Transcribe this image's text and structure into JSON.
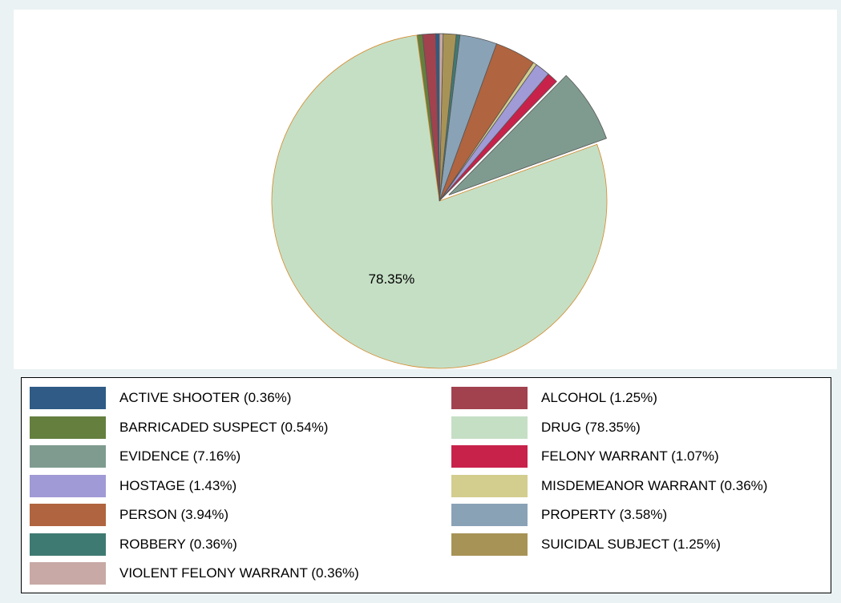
{
  "chart_data": {
    "type": "pie",
    "slices": [
      {
        "name": "ACTIVE SHOOTER",
        "percent": 0.36,
        "color": "#2f5b86",
        "legend_label": "ACTIVE SHOOTER (0.36%)"
      },
      {
        "name": "ALCOHOL",
        "percent": 1.25,
        "color": "#a2424f",
        "legend_label": "ALCOHOL (1.25%)"
      },
      {
        "name": "BARRICADED SUSPECT",
        "percent": 0.54,
        "color": "#657f3f",
        "legend_label": "BARRICADED SUSPECT (0.54%)"
      },
      {
        "name": "DRUG",
        "percent": 78.35,
        "color": "#c5dfc5",
        "legend_label": "DRUG (78.35%)",
        "data_label": "78.35%"
      },
      {
        "name": "EVIDENCE",
        "percent": 7.16,
        "color": "#7f9b8f",
        "legend_label": "EVIDENCE (7.16%)",
        "exploded": true
      },
      {
        "name": "FELONY WARRANT",
        "percent": 1.07,
        "color": "#c8224a",
        "legend_label": "FELONY WARRANT (1.07%)"
      },
      {
        "name": "HOSTAGE",
        "percent": 1.43,
        "color": "#a09ad6",
        "legend_label": "HOSTAGE (1.43%)"
      },
      {
        "name": "MISDEMEANOR WARRANT",
        "percent": 0.36,
        "color": "#d3cd8e",
        "legend_label": "MISDEMEANOR WARRANT (0.36%)"
      },
      {
        "name": "PERSON",
        "percent": 3.94,
        "color": "#b0643f",
        "legend_label": "PERSON (3.94%)"
      },
      {
        "name": "PROPERTY",
        "percent": 3.58,
        "color": "#8aa2b6",
        "legend_label": "PROPERTY (3.58%)"
      },
      {
        "name": "ROBBERY",
        "percent": 0.36,
        "color": "#3f7a72",
        "legend_label": "ROBBERY (0.36%)"
      },
      {
        "name": "SUICIDAL SUBJECT",
        "percent": 1.25,
        "color": "#a89356",
        "legend_label": "SUICIDAL SUBJECT (1.25%)"
      },
      {
        "name": "VIOLENT FELONY WARRANT",
        "percent": 0.36,
        "color": "#c8a9a5",
        "legend_label": "VIOLENT FELONY WARRANT (0.36%)"
      }
    ],
    "legend": {
      "placement": "bottom",
      "columns": 2
    },
    "slice_outline_color": "#d4892a",
    "plot_background": "#ffffff",
    "page_background": "#eaf2f3"
  }
}
